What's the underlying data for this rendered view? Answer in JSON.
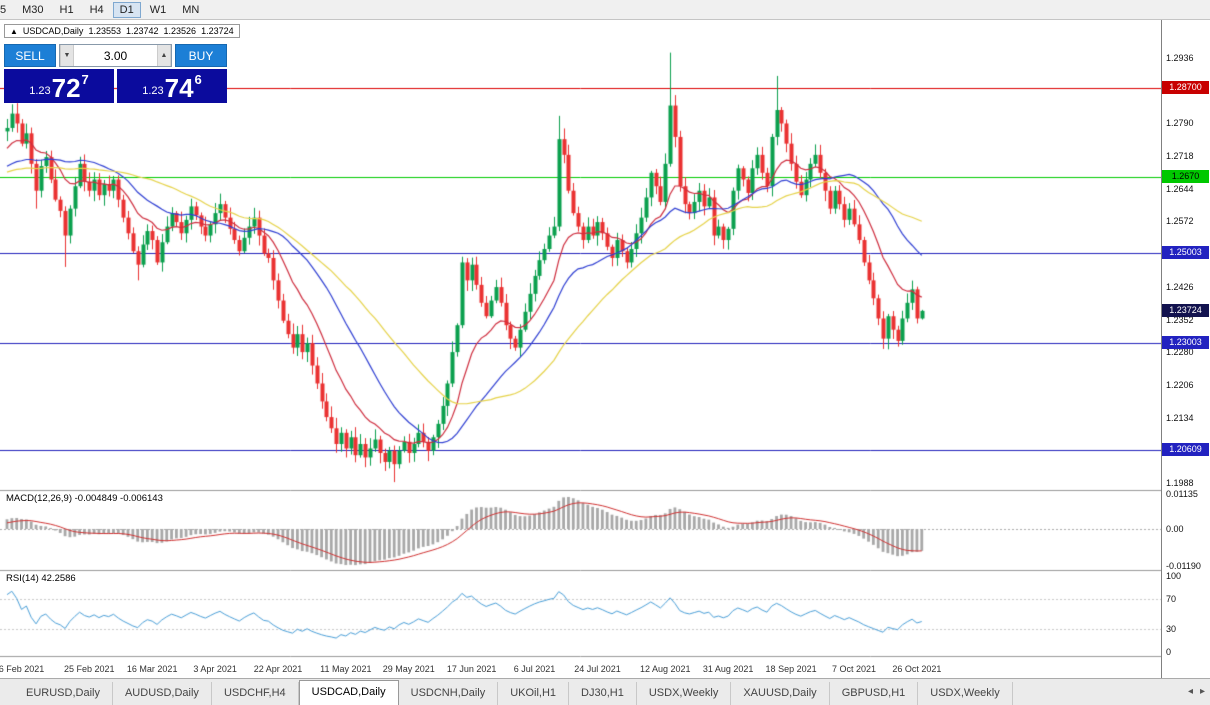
{
  "toolbar": {
    "timeframes": [
      "5",
      "M30",
      "H1",
      "H4",
      "D1",
      "W1",
      "MN"
    ],
    "active": "D1"
  },
  "quote": {
    "arrow": "▲",
    "symbol": "USDCAD,Daily",
    "open": "1.23553",
    "high": "1.23742",
    "low": "1.23526",
    "close": "1.23724"
  },
  "order_panel": {
    "sell_label": "SELL",
    "buy_label": "BUY",
    "volume": "3.00",
    "spin_down_icon": "▼",
    "spin_up_icon": "▲",
    "sell_price_base": "1.23",
    "sell_price_big": "72",
    "sell_price_pip": "7",
    "buy_price_base": "1.23",
    "buy_price_big": "74",
    "buy_price_pip": "6"
  },
  "colors": {
    "candle_up": "#0ba04e",
    "candle_down": "#ea3232",
    "panel_blue": "#1c7fd6",
    "panel_navy": "#0b0b9d",
    "chart_bg": "#ffffff"
  },
  "chart_data": {
    "type": "candlestick",
    "symbol": "USDCAD",
    "timeframe": "Daily",
    "quote_ohlc": {
      "open": 1.23553,
      "high": 1.23742,
      "low": 1.23526,
      "close": 1.23724
    },
    "ylim": [
      1.19724,
      1.30208
    ],
    "closes": [
      1.278,
      1.2812,
      1.279,
      1.2745,
      1.2768,
      1.27,
      1.264,
      1.2695,
      1.2715,
      1.2665,
      1.262,
      1.2595,
      1.254,
      1.26,
      1.265,
      1.27,
      1.266,
      1.264,
      1.2665,
      1.263,
      1.2655,
      1.264,
      1.2665,
      1.262,
      1.258,
      1.2545,
      1.2505,
      1.2475,
      1.252,
      1.255,
      1.253,
      1.248,
      1.2525,
      1.256,
      1.259,
      1.257,
      1.2545,
      1.2575,
      1.2605,
      1.2585,
      1.256,
      1.254,
      1.2565,
      1.259,
      1.261,
      1.258,
      1.2555,
      1.253,
      1.2505,
      1.2535,
      1.256,
      1.258,
      1.254,
      1.25,
      1.249,
      1.244,
      1.2395,
      1.235,
      1.232,
      1.229,
      1.232,
      1.228,
      1.23,
      1.225,
      1.221,
      1.217,
      1.2135,
      1.211,
      1.2075,
      1.21,
      1.2065,
      1.209,
      1.205,
      1.2075,
      1.2045,
      1.2065,
      1.2085,
      1.2055,
      1.2035,
      1.206,
      1.203,
      1.206,
      1.208,
      1.2055,
      1.2075,
      1.21,
      1.208,
      1.206,
      1.209,
      1.212,
      1.216,
      1.221,
      1.228,
      1.234,
      1.248,
      1.244,
      1.2475,
      1.243,
      1.239,
      1.236,
      1.2395,
      1.2425,
      1.239,
      1.234,
      1.231,
      1.229,
      1.233,
      1.237,
      1.241,
      1.245,
      1.2485,
      1.251,
      1.254,
      1.256,
      1.2755,
      1.272,
      1.264,
      1.259,
      1.256,
      1.253,
      1.256,
      1.254,
      1.257,
      1.2545,
      1.2515,
      1.249,
      1.253,
      1.2505,
      1.248,
      1.251,
      1.2545,
      1.258,
      1.2625,
      1.268,
      1.265,
      1.2615,
      1.27,
      1.283,
      1.276,
      1.265,
      1.261,
      1.259,
      1.2615,
      1.264,
      1.2605,
      1.2625,
      1.254,
      1.256,
      1.253,
      1.2555,
      1.264,
      1.269,
      1.2665,
      1.2635,
      1.269,
      1.272,
      1.268,
      1.265,
      1.276,
      1.282,
      1.279,
      1.2745,
      1.27,
      1.266,
      1.263,
      1.2665,
      1.27,
      1.272,
      1.268,
      1.264,
      1.26,
      1.264,
      1.261,
      1.2575,
      1.26,
      1.2565,
      1.253,
      1.248,
      1.244,
      1.24,
      1.2355,
      1.231,
      1.236,
      1.233,
      1.2305,
      1.2355,
      1.239,
      1.242,
      1.2355,
      1.2372
    ],
    "wick_overrides": {
      "6": {
        "low": 1.26
      },
      "12": {
        "low": 1.247
      },
      "27": {
        "low": 1.244
      },
      "80": {
        "low": 1.199
      },
      "114": {
        "high": 1.2807
      },
      "137": {
        "high": 1.2948
      },
      "159": {
        "high": 1.2896
      },
      "181": {
        "low": 1.2287
      },
      "189": {
        "high": 1.23742,
        "low": 1.23526
      }
    },
    "moving_averages": [
      {
        "period": 13,
        "type": "ema",
        "color": "#cf2e3f"
      },
      {
        "period": 25,
        "type": "sma",
        "color": "#2f3fd3"
      },
      {
        "period": 40,
        "type": "sma",
        "color": "#e6d34a"
      }
    ],
    "levels": [
      {
        "v": 1.287,
        "color": "#dd0000"
      },
      {
        "v": 1.267,
        "color": "#00cc00"
      },
      {
        "v": 1.25003,
        "color": "#2121bb"
      },
      {
        "v": 1.23003,
        "color": "#2121bb"
      },
      {
        "v": 1.20609,
        "color": "#2121bb"
      }
    ],
    "axis_labels": [
      {
        "v": 1.2936,
        "t": "1.2936"
      },
      {
        "v": 1.279,
        "t": "1.2790"
      },
      {
        "v": 1.2718,
        "t": "1.2718"
      },
      {
        "v": 1.2644,
        "t": "1.2644"
      },
      {
        "v": 1.2572,
        "t": "1.2572"
      },
      {
        "v": 1.2426,
        "t": "1.2426"
      },
      {
        "v": 1.2352,
        "t": "1.2352"
      },
      {
        "v": 1.228,
        "t": "1.2280"
      },
      {
        "v": 1.2206,
        "t": "1.2206"
      },
      {
        "v": 1.2134,
        "t": "1.2134"
      },
      {
        "v": 1.1988,
        "t": "1.1988"
      }
    ],
    "badges": [
      {
        "v": 1.287,
        "t": "1.28700",
        "bg": "#c80000",
        "fg": "#ffffff",
        "name": "resistance-level-badge"
      },
      {
        "v": 1.267,
        "t": "1.2670",
        "bg": "#00c800",
        "fg": "#000000",
        "name": "green-level-badge"
      },
      {
        "v": 1.25003,
        "t": "1.25003",
        "bg": "#2222c0",
        "fg": "#ffffff",
        "name": "blue-level-badge"
      },
      {
        "v": 1.23724,
        "t": "1.23724",
        "bg": "#12124e",
        "fg": "#ffffff",
        "name": "current-price-badge"
      },
      {
        "v": 1.23003,
        "t": "1.23003",
        "bg": "#2222c0",
        "fg": "#ffffff",
        "name": "blue-level-badge"
      },
      {
        "v": 1.20609,
        "t": "1.20609",
        "bg": "#2222c0",
        "fg": "#ffffff",
        "name": "blue-level-badge"
      }
    ]
  },
  "indicators": {
    "macd": {
      "label": "MACD(12,26,9) -0.004849 -0.006143",
      "fast": 12,
      "slow": 26,
      "signal_period": 9,
      "values_shown": [
        -0.004849,
        -0.006143
      ],
      "ylim": [
        -0.0133,
        0.012
      ],
      "axis": [
        {
          "v": 0.01135,
          "t": "0.01135"
        },
        {
          "v": 0,
          "t": "0.00"
        },
        {
          "v": -0.0119,
          "t": "-0.01190"
        }
      ],
      "histogram_color": "#a8a8a8",
      "signal_color": "#d03030"
    },
    "rsi": {
      "label": "RSI(14) 42.2586",
      "period": 14,
      "value_shown": 42.2586,
      "ylim": [
        -5,
        105
      ],
      "axis": [
        {
          "v": 100,
          "t": "100"
        },
        {
          "v": 70,
          "t": "70"
        },
        {
          "v": 30,
          "t": "30"
        },
        {
          "v": 0,
          "t": "0"
        }
      ],
      "color": "#4a9fd8",
      "level_lines": [
        30,
        70
      ]
    }
  },
  "dates": [
    {
      "i": 3,
      "label": "6 Feb 2021"
    },
    {
      "i": 17,
      "label": "25 Feb 2021"
    },
    {
      "i": 30,
      "label": "16 Mar 2021"
    },
    {
      "i": 43,
      "label": "3 Apr 2021"
    },
    {
      "i": 56,
      "label": "22 Apr 2021"
    },
    {
      "i": 70,
      "label": "11 May 2021"
    },
    {
      "i": 83,
      "label": "29 May 2021"
    },
    {
      "i": 96,
      "label": "17 Jun 2021"
    },
    {
      "i": 109,
      "label": "6 Jul 2021"
    },
    {
      "i": 122,
      "label": "24 Jul 2021"
    },
    {
      "i": 136,
      "label": "12 Aug 2021"
    },
    {
      "i": 149,
      "label": "31 Aug 2021"
    },
    {
      "i": 162,
      "label": "18 Sep 2021"
    },
    {
      "i": 175,
      "label": "7 Oct 2021"
    },
    {
      "i": 188,
      "label": "26 Oct 2021"
    }
  ],
  "tabs": {
    "items": [
      "EURUSD,Daily",
      "AUDUSD,Daily",
      "USDCHF,H4",
      "USDCAD,Daily",
      "USDCNH,Daily",
      "UKOil,H1",
      "DJ30,H1",
      "USDX,Weekly",
      "XAUUSD,Daily",
      "GBPUSD,H1",
      "USDX,Weekly"
    ],
    "active_index": 3,
    "scroll_left_icon": "◂",
    "scroll_right_icon": "▸"
  }
}
